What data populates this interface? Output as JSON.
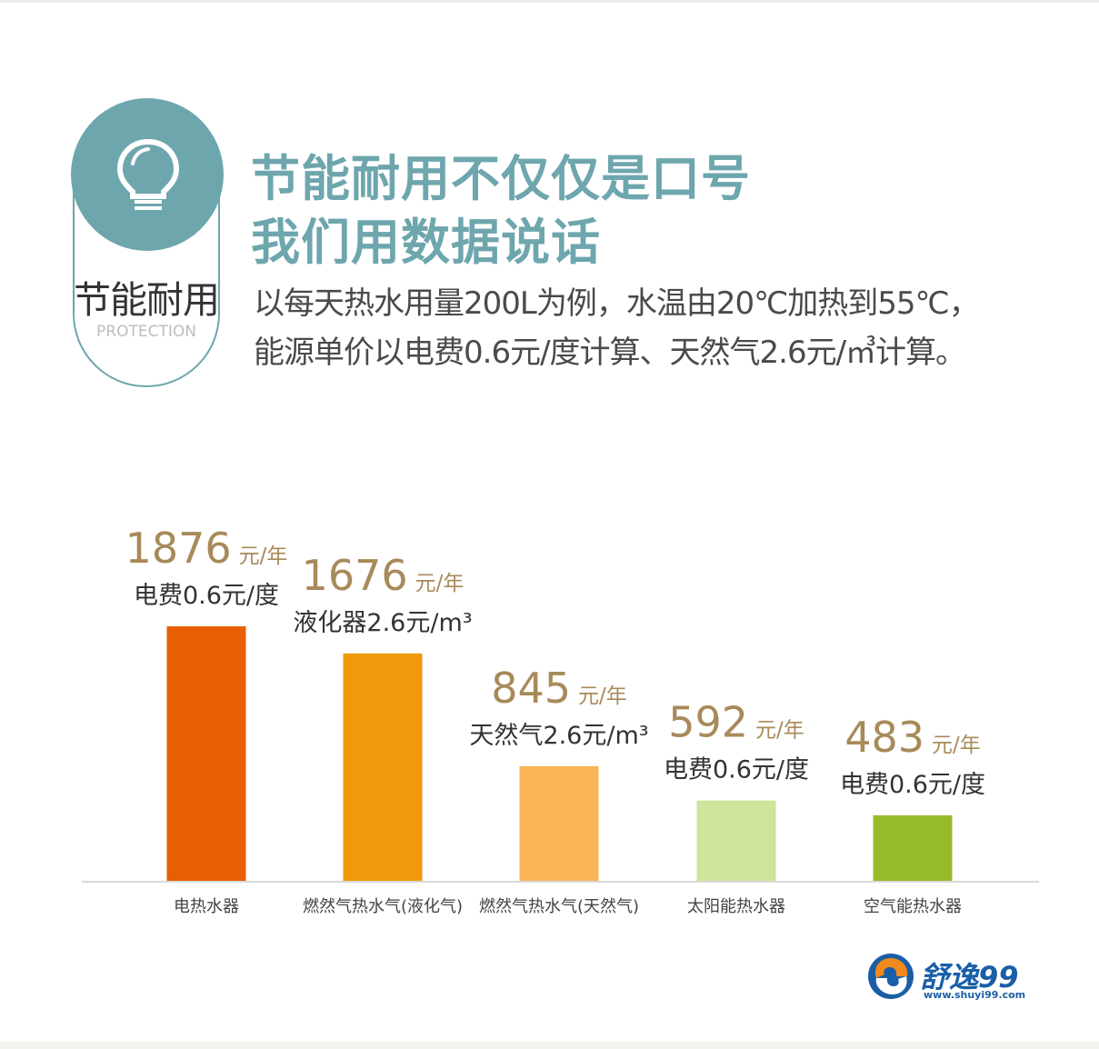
{
  "header": {
    "badge_title": "节能耐用",
    "badge_subtitle": "PROTECTION",
    "headline_line1": "节能耐用不仅仅是口号",
    "headline_line2": "我们用数据说话",
    "desc_line1": "以每天热水用量200L为例，水温由20℃加热到55℃，",
    "desc_line2": "能源单价以电费0.6元/度计算、天然气2.6元/㎥计算。",
    "icon": "lightbulb-icon",
    "accent_color": "#6ea6ad"
  },
  "chart_data": {
    "type": "bar",
    "categories": [
      "电热水器",
      "燃然气热水气(液化气)",
      "燃然气热水气(天然气)",
      "太阳能热水器",
      "空气能热水器"
    ],
    "values": [
      1876,
      1676,
      845,
      592,
      483
    ],
    "value_unit": "元/年",
    "price_labels": [
      "电费0.6元/度",
      "液化器2.6元/m³",
      "天然气2.6元/m³",
      "电费0.6元/度",
      "电费0.6元/度"
    ],
    "colors": [
      "#e85e05",
      "#f0990a",
      "#f8b455",
      "#cfe39a",
      "#97bb28"
    ],
    "ylim": [
      0,
      1876
    ]
  },
  "logo": {
    "name": "舒逸99",
    "url": "www.shuyi99.com"
  }
}
